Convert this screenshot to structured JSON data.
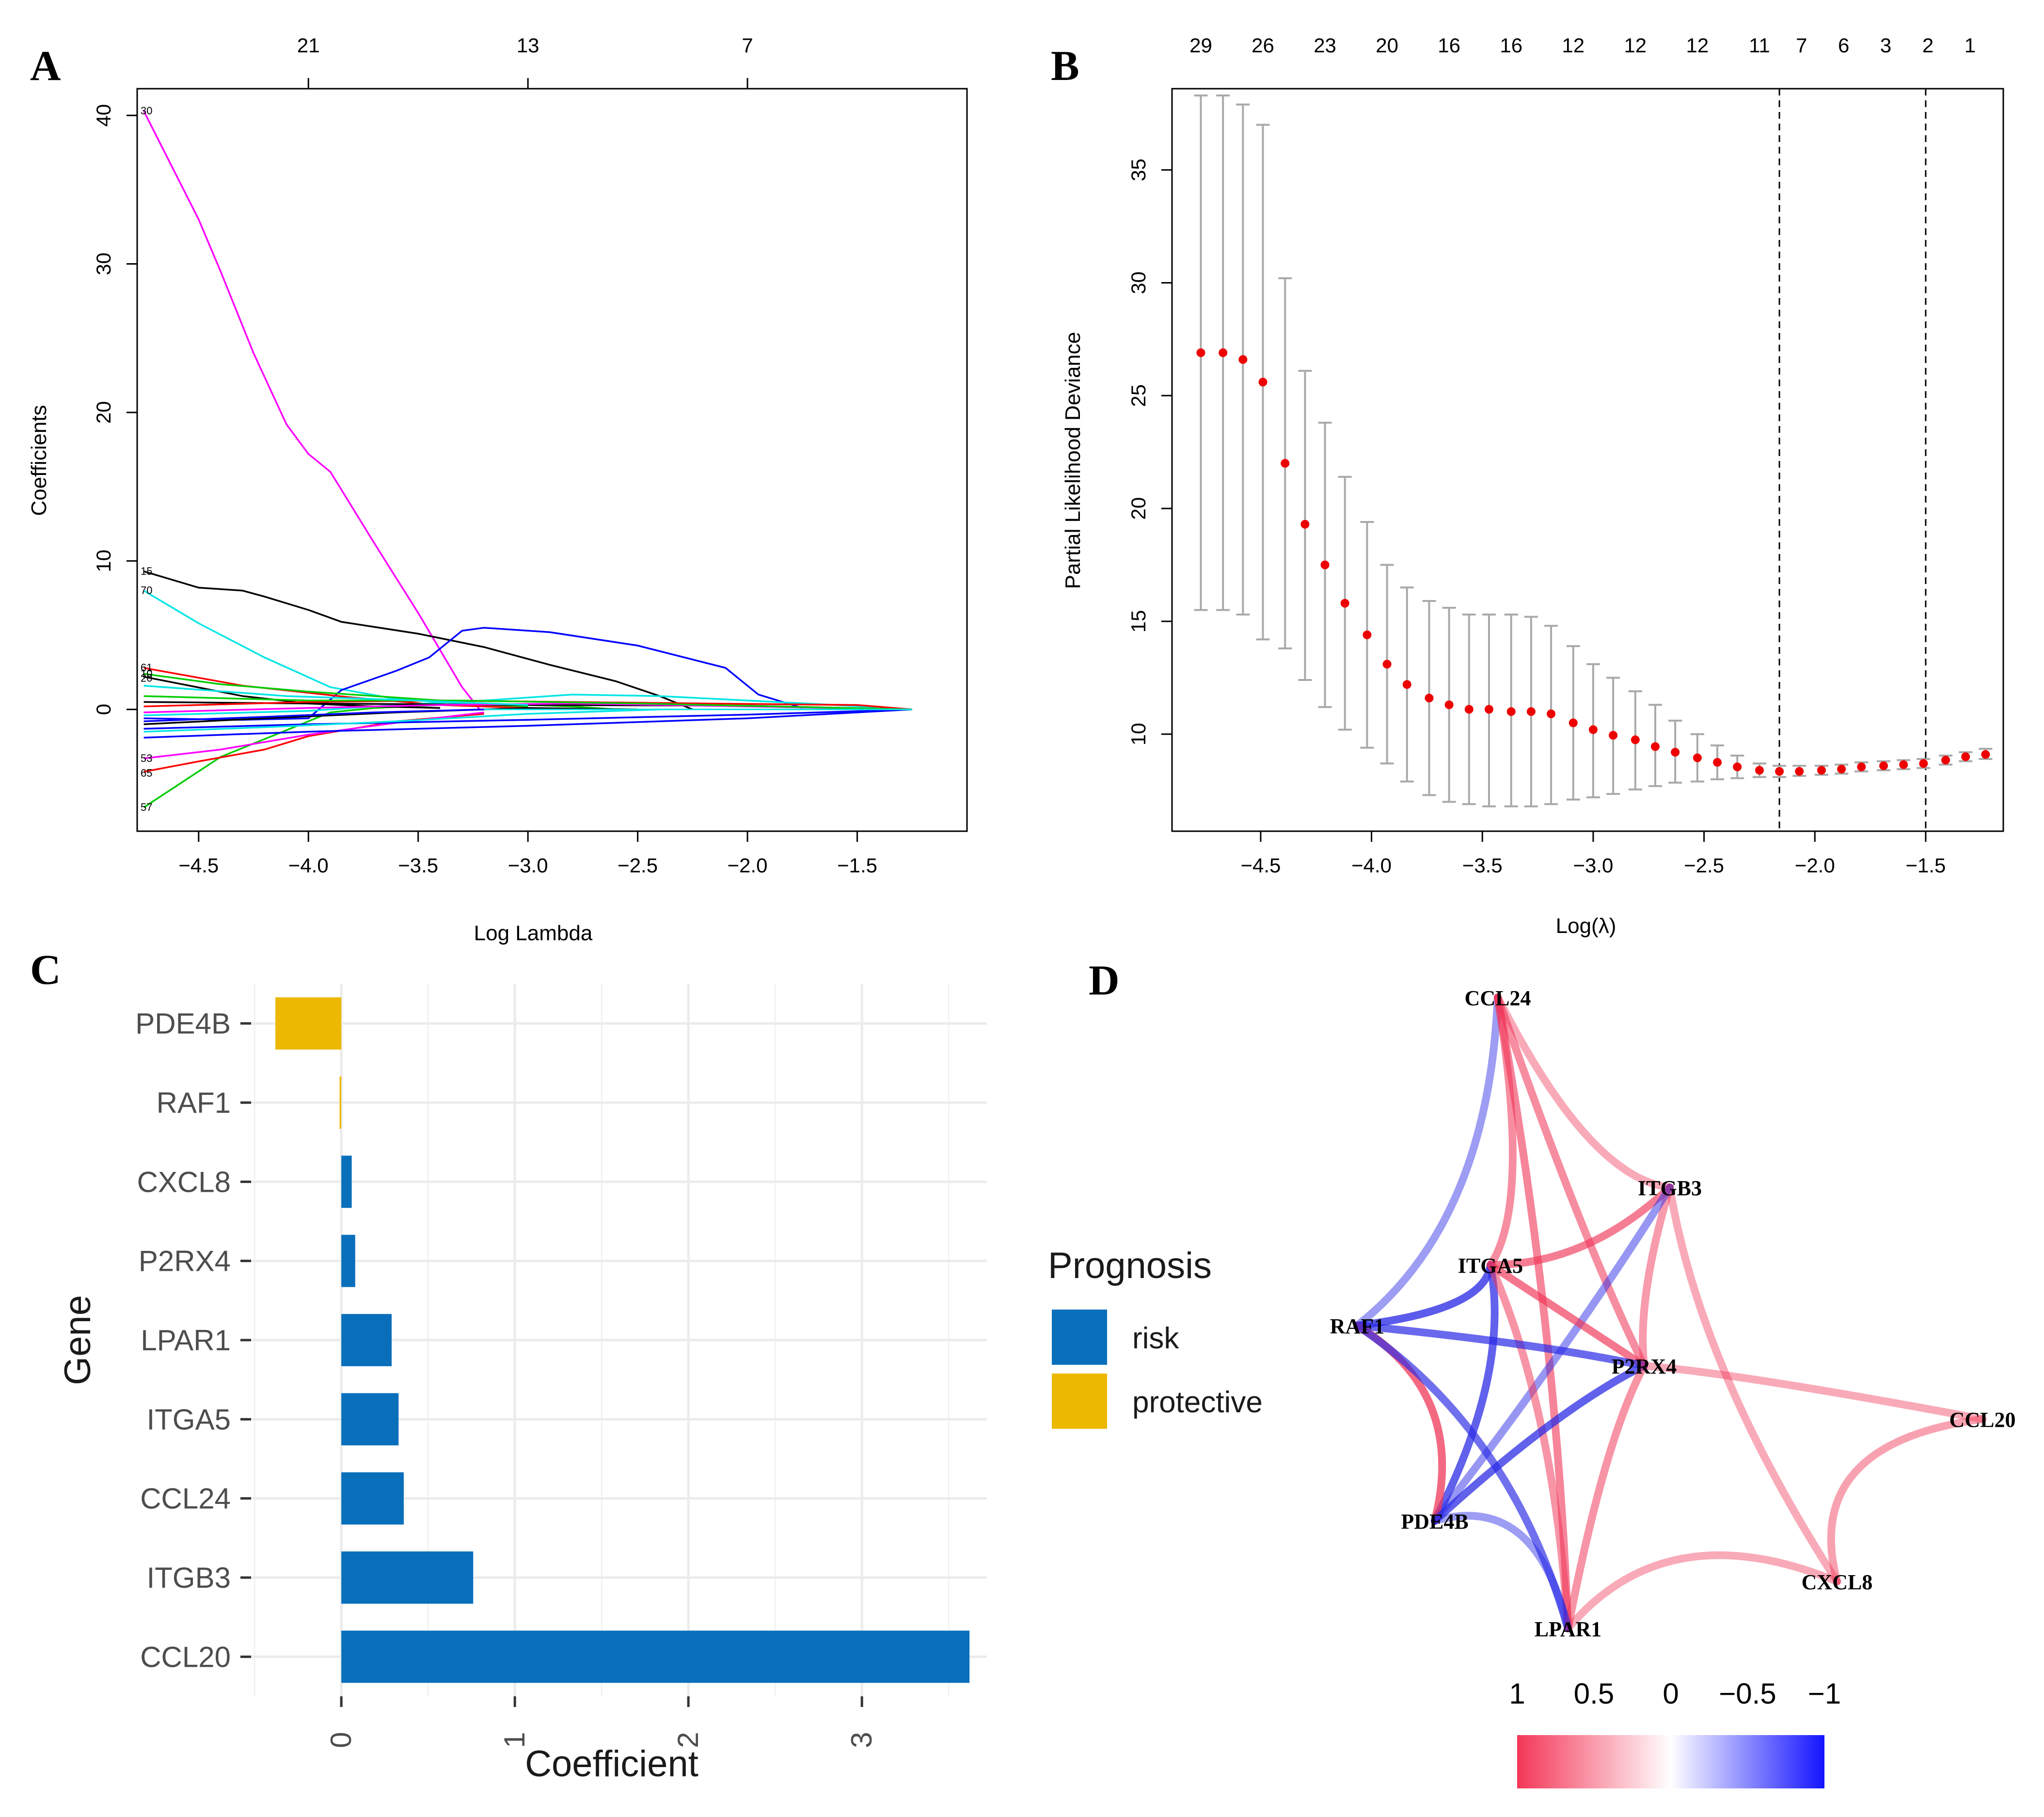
{
  "colors": {
    "risk": "#0a6fbb",
    "protective": "#ecb800",
    "positive": "#f03456",
    "negative": "#2a2ae6",
    "point": "#ee0000",
    "errorbar": "#a9a9a9"
  },
  "panels": {
    "A": {
      "letter": "A"
    },
    "B": {
      "letter": "B"
    },
    "C": {
      "letter": "C"
    },
    "D": {
      "letter": "D"
    }
  },
  "chart_data": [
    {
      "id": "A",
      "type": "line",
      "title": "",
      "xlabel": "Log Lambda",
      "ylabel": "Coefficients",
      "xlim": [
        -4.78,
        -1.0
      ],
      "ylim": [
        -8.2,
        41.8
      ],
      "xticks": [
        -4.5,
        -4.0,
        -3.5,
        -3.0,
        -2.5,
        -2.0,
        -1.5
      ],
      "xtick_labels": [
        "−4.5",
        "−4.0",
        "−3.5",
        "−3.0",
        "−2.5",
        "−2.0",
        "−1.5"
      ],
      "yticks": [
        0,
        10,
        20,
        30,
        40
      ],
      "ytick_labels": [
        "0",
        "10",
        "20",
        "30",
        "40"
      ],
      "top_ticks": [
        -4.0,
        -3.0,
        -2.0
      ],
      "top_tick_labels": [
        "21",
        "13",
        "7"
      ],
      "series": [
        {
          "name": "30",
          "color": "#ff00ff",
          "x": [
            -4.75,
            -4.5,
            -4.4,
            -4.25,
            -4.1,
            -4.0,
            -3.9,
            -3.7,
            -3.5,
            -3.3,
            -3.22
          ],
          "y": [
            40.3,
            33,
            29.5,
            24,
            19.2,
            17.2,
            16,
            11.2,
            6.5,
            1.5,
            0
          ]
        },
        {
          "name": "15",
          "color": "#000000",
          "x": [
            -4.75,
            -4.5,
            -4.3,
            -4.2,
            -4.0,
            -3.85,
            -3.5,
            -3.2,
            -2.9,
            -2.6,
            -2.4,
            -2.25
          ],
          "y": [
            9.3,
            8.2,
            8.0,
            7.6,
            6.7,
            5.9,
            5.1,
            4.2,
            3.0,
            1.9,
            0.9,
            0
          ]
        },
        {
          "name": "70",
          "color": "#00e5e5",
          "x": [
            -4.75,
            -4.5,
            -4.2,
            -3.9,
            -3.6,
            -3.3,
            -3.1
          ],
          "y": [
            8.0,
            5.8,
            3.5,
            1.5,
            0.7,
            0.4,
            0.2
          ]
        },
        {
          "name": "blue",
          "color": "#0000ff",
          "x": [
            -4.75,
            -4.3,
            -4.0,
            -3.85,
            -3.6,
            -3.45,
            -3.3,
            -3.2,
            -2.9,
            -2.5,
            -2.1,
            -1.95,
            -1.75
          ],
          "y": [
            -0.6,
            -0.7,
            -0.6,
            1.3,
            2.6,
            3.5,
            5.3,
            5.5,
            5.2,
            4.3,
            2.8,
            1.0,
            0.1
          ]
        },
        {
          "name": "57",
          "color": "#00cd00",
          "x": [
            -4.75,
            -4.4,
            -4.1,
            -3.9,
            -3.7,
            -3.4,
            -3.0
          ],
          "y": [
            -6.6,
            -3.2,
            -1.4,
            -0.2,
            0.1,
            0.3,
            0.2
          ]
        },
        {
          "name": "65",
          "color": "#ff0000",
          "x": [
            -4.75,
            -4.5,
            -4.2,
            -4.0,
            -3.6,
            -3.2
          ],
          "y": [
            -4.2,
            -3.5,
            -2.7,
            -1.8,
            -0.8,
            -0.3
          ]
        },
        {
          "name": "53",
          "color": "#ff00ff",
          "x": [
            -4.75,
            -4.4,
            -4.0,
            -3.6,
            -3.2
          ],
          "y": [
            -3.3,
            -2.7,
            -1.7,
            -0.9,
            -0.2
          ]
        },
        {
          "name": "61",
          "color": "#ff0000",
          "x": [
            -4.75,
            -4.3,
            -3.8,
            -3.4,
            -3.0
          ],
          "y": [
            2.8,
            1.6,
            0.8,
            0.3,
            0.1
          ]
        },
        {
          "name": "10",
          "color": "#00cd00",
          "x": [
            -4.75,
            -4.4,
            -4.0,
            -3.6,
            -3.2,
            -2.8,
            -2.6
          ],
          "y": [
            2.4,
            1.7,
            1.2,
            0.8,
            0.4,
            0.2,
            0
          ]
        },
        {
          "name": "20",
          "color": "#000000",
          "x": [
            -4.75,
            -4.3,
            -4.0,
            -3.7,
            -3.4
          ],
          "y": [
            2.2,
            0.9,
            0.4,
            0.2,
            0.1
          ]
        },
        {
          "name": "cyan2",
          "color": "#00e5e5",
          "x": [
            -4.75,
            -4.0,
            -3.6,
            -3.2,
            -2.8,
            -2.4,
            -2.0,
            -1.6,
            -1.25
          ],
          "y": [
            -0.4,
            -0.1,
            0.3,
            0.6,
            1.0,
            0.9,
            0.6,
            0.3,
            0
          ]
        },
        {
          "name": "blue2",
          "color": "#0000ff",
          "x": [
            -4.75,
            -4.0,
            -3.0,
            -2.0,
            -1.25
          ],
          "y": [
            -1.3,
            -1.0,
            -0.7,
            -0.35,
            0
          ]
        },
        {
          "name": "blue3",
          "color": "#0000ff",
          "x": [
            -4.75,
            -4.0,
            -3.0,
            -2.0,
            -1.25
          ],
          "y": [
            -1.9,
            -1.5,
            -1.1,
            -0.6,
            0
          ]
        },
        {
          "name": "black3",
          "color": "#000000",
          "x": [
            -4.75,
            -4.0,
            -3.0,
            -2.0,
            -1.25
          ],
          "y": [
            0.5,
            0.4,
            0.3,
            0.25,
            0
          ]
        },
        {
          "name": "black4",
          "color": "#000000",
          "x": [
            -4.75,
            -4.2,
            -3.6,
            -3.0,
            -2.5
          ],
          "y": [
            -1.0,
            -0.6,
            -0.2,
            0.1,
            0
          ]
        },
        {
          "name": "red3",
          "color": "#ff0000",
          "x": [
            -4.75,
            -4.0,
            -3.4,
            -2.8,
            -2.2,
            -1.5,
            -1.25
          ],
          "y": [
            0.2,
            0.5,
            0.6,
            0.5,
            0.4,
            0.3,
            0
          ]
        },
        {
          "name": "magenta3",
          "color": "#ff00ff",
          "x": [
            -4.75,
            -4.0,
            -3.4,
            -2.8,
            -2.0,
            -1.25
          ],
          "y": [
            -0.2,
            0.1,
            0.3,
            0.4,
            0.2,
            0
          ]
        },
        {
          "name": "green3",
          "color": "#00cd00",
          "x": [
            -4.75,
            -4.0,
            -3.3,
            -2.5,
            -1.25
          ],
          "y": [
            0.9,
            0.6,
            0.6,
            0.4,
            0
          ]
        },
        {
          "name": "cyan3",
          "color": "#00e5e5",
          "x": [
            -4.75,
            -4.2,
            -3.6,
            -3.0,
            -2.4
          ],
          "y": [
            -1.5,
            -1.2,
            -0.8,
            -0.3,
            0
          ]
        },
        {
          "name": "blue4",
          "color": "#0000ff",
          "x": [
            -4.75,
            -4.2,
            -3.7,
            -3.2
          ],
          "y": [
            -0.8,
            -0.5,
            -0.2,
            0
          ]
        },
        {
          "name": "cyan4",
          "color": "#00e5e5",
          "x": [
            -4.75,
            -4.1,
            -3.5,
            -3.0
          ],
          "y": [
            1.6,
            0.9,
            0.6,
            0.3
          ]
        }
      ],
      "line_labels": [
        "30",
        "15",
        "70",
        "61",
        "10",
        "20",
        "53",
        "65",
        "57"
      ]
    },
    {
      "id": "B",
      "type": "scatter",
      "title": "",
      "xlabel": "Log(λ)",
      "ylabel": "Partial Likelihood Deviance",
      "xlim": [
        -4.9,
        -1.15
      ],
      "ylim": [
        5.7,
        38.6
      ],
      "xticks": [
        -4.5,
        -4.0,
        -3.5,
        -3.0,
        -2.5,
        -2.0,
        -1.5
      ],
      "xtick_labels": [
        "−4.5",
        "−4.0",
        "−3.5",
        "−3.0",
        "−2.5",
        "−2.0",
        "−1.5"
      ],
      "yticks": [
        10,
        15,
        20,
        25,
        30,
        35
      ],
      "ytick_labels": [
        "10",
        "15",
        "20",
        "25",
        "30",
        "35"
      ],
      "vlines": [
        -2.16,
        -1.5
      ],
      "top_ticks": [
        -4.77,
        -4.49,
        -4.21,
        -3.93,
        -3.65,
        -3.37,
        -3.09,
        -2.81,
        -2.53,
        -2.25,
        -2.06,
        -1.87,
        -1.68,
        -1.49,
        -1.3
      ],
      "top_tick_labels": [
        "29",
        "26",
        "23",
        "20",
        "16",
        "16",
        "12",
        "12",
        "12",
        "11",
        "7",
        "6",
        "3",
        "2",
        "1"
      ],
      "points": {
        "x": [
          -4.77,
          -4.67,
          -4.58,
          -4.49,
          -4.39,
          -4.3,
          -4.21,
          -4.12,
          -4.02,
          -3.93,
          -3.84,
          -3.74,
          -3.65,
          -3.56,
          -3.47,
          -3.37,
          -3.28,
          -3.19,
          -3.09,
          -3.0,
          -2.91,
          -2.81,
          -2.72,
          -2.63,
          -2.53,
          -2.44,
          -2.35,
          -2.25,
          -2.16,
          -2.07,
          -1.97,
          -1.88,
          -1.79,
          -1.69,
          -1.6,
          -1.51,
          -1.41,
          -1.32,
          -1.23
        ],
        "y": [
          26.9,
          26.9,
          26.6,
          25.6,
          22.0,
          19.3,
          17.5,
          15.8,
          14.4,
          13.1,
          12.2,
          11.6,
          11.3,
          11.1,
          11.1,
          11.0,
          11.0,
          10.9,
          10.5,
          10.2,
          9.95,
          9.75,
          9.45,
          9.2,
          8.95,
          8.75,
          8.55,
          8.4,
          8.35,
          8.35,
          8.4,
          8.45,
          8.55,
          8.6,
          8.65,
          8.7,
          8.85,
          9.0,
          9.1
        ],
        "lower": [
          15.5,
          15.5,
          15.3,
          14.2,
          13.8,
          12.4,
          11.2,
          10.2,
          9.4,
          8.7,
          7.9,
          7.3,
          7.0,
          6.9,
          6.8,
          6.8,
          6.8,
          6.9,
          7.1,
          7.2,
          7.35,
          7.55,
          7.7,
          7.85,
          7.9,
          8.0,
          8.05,
          8.1,
          8.1,
          8.15,
          8.2,
          8.25,
          8.35,
          8.4,
          8.45,
          8.5,
          8.65,
          8.8,
          8.9
        ],
        "upper": [
          38.3,
          38.3,
          37.9,
          37.0,
          30.2,
          26.1,
          23.8,
          21.4,
          19.4,
          17.5,
          16.5,
          15.9,
          15.6,
          15.3,
          15.3,
          15.3,
          15.2,
          14.8,
          13.9,
          13.1,
          12.5,
          11.9,
          11.3,
          10.6,
          10.0,
          9.5,
          9.05,
          8.7,
          8.6,
          8.6,
          8.6,
          8.65,
          8.75,
          8.8,
          8.85,
          8.9,
          9.05,
          9.2,
          9.35
        ]
      }
    },
    {
      "id": "C",
      "type": "bar",
      "orientation": "horizontal",
      "xlabel": "Coefficient",
      "ylabel": "Gene",
      "xlim": [
        -0.52,
        3.72
      ],
      "xticks": [
        0,
        1,
        2,
        3
      ],
      "xtick_labels": [
        "0",
        "1",
        "2",
        "3"
      ],
      "categories": [
        "PDE4B",
        "RAF1",
        "CXCL8",
        "P2RX4",
        "LPAR1",
        "ITGA5",
        "CCL24",
        "ITGB3",
        "CCL20"
      ],
      "values": [
        -0.38,
        -0.01,
        0.06,
        0.08,
        0.29,
        0.33,
        0.36,
        0.76,
        3.62
      ],
      "prognosis": [
        "protective",
        "protective",
        "risk",
        "risk",
        "risk",
        "risk",
        "risk",
        "risk",
        "risk"
      ],
      "legend_title": "Prognosis",
      "legend": [
        "risk",
        "protective"
      ],
      "legend_position": "right"
    },
    {
      "id": "D",
      "type": "network",
      "nodes": [
        "CCL24",
        "ITGB3",
        "ITGA5",
        "RAF1",
        "P2RX4",
        "CCL20",
        "PDE4B",
        "CXCL8",
        "LPAR1"
      ],
      "edges": [
        {
          "source": "CCL24",
          "target": "RAF1",
          "r": -0.3
        },
        {
          "source": "CCL24",
          "target": "ITGB3",
          "r": 0.25
        },
        {
          "source": "CCL24",
          "target": "ITGA5",
          "r": 0.45
        },
        {
          "source": "CCL24",
          "target": "P2RX4",
          "r": 0.45
        },
        {
          "source": "CCL24",
          "target": "LPAR1",
          "r": 0.5
        },
        {
          "source": "ITGB3",
          "target": "ITGA5",
          "r": 0.55
        },
        {
          "source": "ITGB3",
          "target": "P2RX4",
          "r": 0.35
        },
        {
          "source": "ITGB3",
          "target": "CXCL8",
          "r": 0.25
        },
        {
          "source": "ITGB3",
          "target": "PDE4B",
          "r": -0.35
        },
        {
          "source": "ITGA5",
          "target": "RAF1",
          "r": -0.75
        },
        {
          "source": "ITGA5",
          "target": "PDE4B",
          "r": -0.7
        },
        {
          "source": "ITGA5",
          "target": "P2RX4",
          "r": 0.6
        },
        {
          "source": "ITGA5",
          "target": "LPAR1",
          "r": 0.4
        },
        {
          "source": "RAF1",
          "target": "P2RX4",
          "r": -0.65
        },
        {
          "source": "RAF1",
          "target": "PDE4B",
          "r": 0.7
        },
        {
          "source": "RAF1",
          "target": "LPAR1",
          "r": -0.6
        },
        {
          "source": "P2RX4",
          "target": "CCL20",
          "r": 0.25
        },
        {
          "source": "P2RX4",
          "target": "PDE4B",
          "r": -0.7
        },
        {
          "source": "P2RX4",
          "target": "LPAR1",
          "r": 0.4
        },
        {
          "source": "CCL20",
          "target": "CXCL8",
          "r": 0.3
        },
        {
          "source": "CXCL8",
          "target": "LPAR1",
          "r": 0.25
        },
        {
          "source": "PDE4B",
          "target": "LPAR1",
          "r": -0.3
        }
      ],
      "colorbar": {
        "ticks": [
          1,
          0.5,
          0,
          -0.5,
          -1
        ],
        "labels": [
          "1",
          "0.5",
          "0",
          "−0.5",
          "−1"
        ]
      }
    }
  ]
}
